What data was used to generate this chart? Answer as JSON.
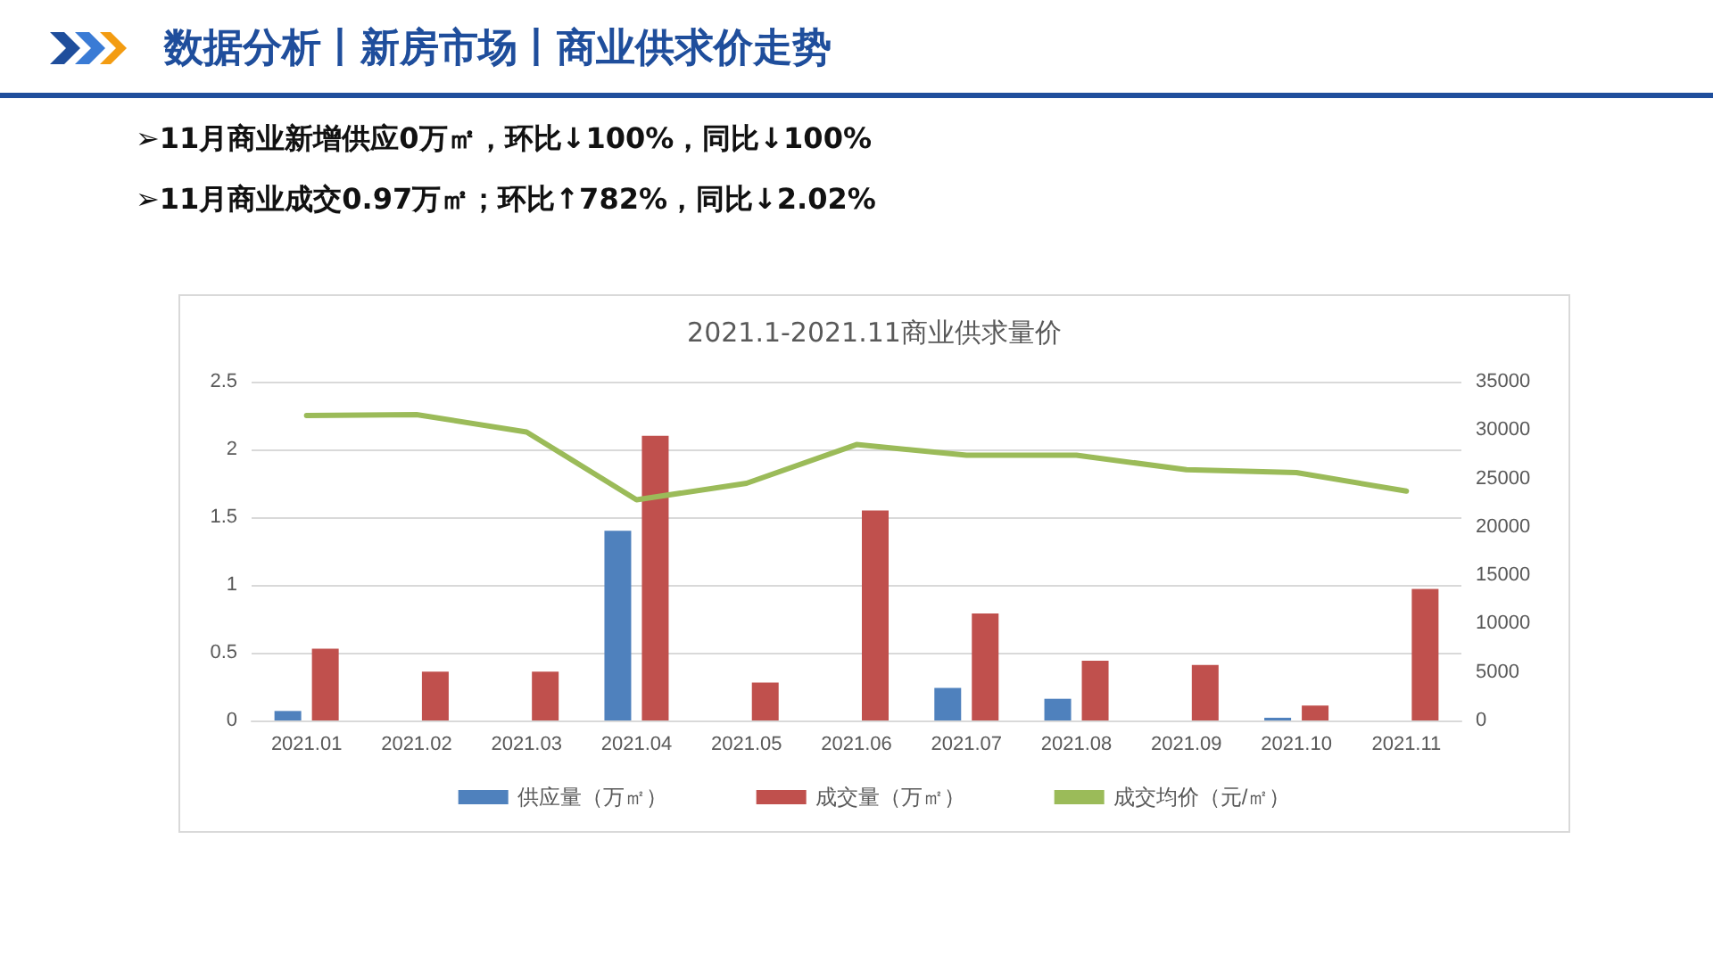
{
  "chart_data": {
    "type": "bar",
    "title": "2021.1-2021.11商业供求量价",
    "subtitle": "数据分析丨新房市场丨商业供求价走势",
    "annotations": [
      "➢11月商业新增供应0万㎡，环比↓100%，同比↓100%",
      "➢11月商业成交0.97万㎡；环比↑782%，同比↓2.02%"
    ],
    "categories": [
      "2021.01",
      "2021.02",
      "2021.03",
      "2021.04",
      "2021.05",
      "2021.06",
      "2021.07",
      "2021.08",
      "2021.09",
      "2021.10",
      "2021.11"
    ],
    "series": [
      {
        "name": "供应量（万㎡）",
        "color": "#4f81bd",
        "values": [
          0.07,
          0,
          0,
          1.4,
          0,
          0,
          0.24,
          0.16,
          0,
          0.02,
          0
        ]
      },
      {
        "name": "成交量（万㎡）",
        "color": "#c0504d",
        "values": [
          0.53,
          0.36,
          0.36,
          2.1,
          0.28,
          1.55,
          0.79,
          0.44,
          0.41,
          0.11,
          0.97
        ]
      },
      {
        "name": "成交均价（元/㎡）",
        "type": "line",
        "axis": "y2",
        "color": "#9bbb59",
        "values": [
          31500,
          31600,
          29800,
          22800,
          24500,
          28500,
          27400,
          27400,
          25900,
          25600,
          23700
        ]
      }
    ],
    "ylim": [
      0,
      2.5
    ],
    "yticks": [
      0,
      0.5,
      1,
      1.5,
      2,
      2.5
    ],
    "y2lim": [
      0,
      35000
    ],
    "y2ticks": [
      0,
      5000,
      10000,
      15000,
      20000,
      25000,
      30000,
      35000
    ],
    "grid": "y",
    "legend": "bottom",
    "marker": "none",
    "line_style": "solid"
  }
}
